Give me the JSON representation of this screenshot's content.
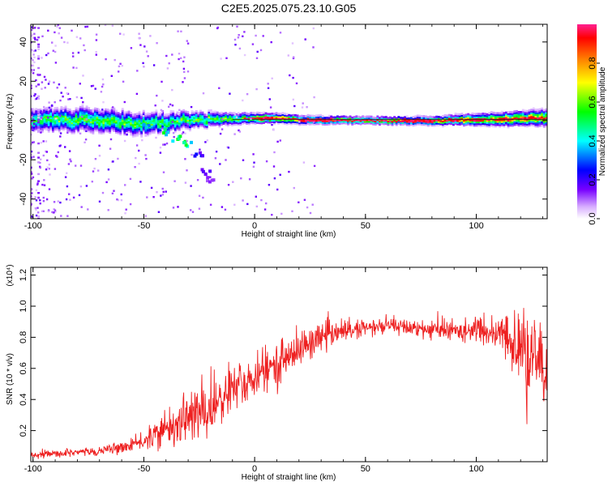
{
  "chart_data": [
    {
      "type": "heatmap",
      "title": "C2E5.2025.075.23.10.G05",
      "xlabel": "Height of straight line (km)",
      "ylabel": "Frequency (Hz)",
      "xlim": [
        -101,
        132
      ],
      "ylim": [
        -50,
        49
      ],
      "xticks": [
        -100,
        -50,
        0,
        50,
        100
      ],
      "yticks": [
        -40,
        -20,
        0,
        20,
        40
      ],
      "colorbar": {
        "label": "Normalized spectral amplitude",
        "ticks": [
          0.0,
          0.2,
          0.4,
          0.6,
          0.8
        ],
        "range": [
          0,
          1
        ],
        "colors": [
          "#ffffff",
          "#d9b0ff",
          "#7700ff",
          "#0000ff",
          "#00ffff",
          "#00ff00",
          "#ffff00",
          "#ff8000",
          "#ff0000",
          "#ff2090"
        ]
      },
      "ridge": [
        {
          "x": -100,
          "f": 0.0,
          "a": 0.55,
          "w": 4.5
        },
        {
          "x": -75,
          "f": 0.5,
          "a": 0.6,
          "w": 5.0
        },
        {
          "x": -50,
          "f": -1.5,
          "a": 0.55,
          "w": 4.5
        },
        {
          "x": -30,
          "f": 0.5,
          "a": 0.7,
          "w": 3.5
        },
        {
          "x": -10,
          "f": 1.0,
          "a": 0.85,
          "w": 2.5
        },
        {
          "x": 10,
          "f": 1.5,
          "a": 0.9,
          "w": 2.0
        },
        {
          "x": 20,
          "f": 0.5,
          "a": 0.95,
          "w": 1.8
        },
        {
          "x": 50,
          "f": 0.0,
          "a": 1.0,
          "w": 1.5
        },
        {
          "x": 80,
          "f": 0.0,
          "a": 0.97,
          "w": 1.8
        },
        {
          "x": 100,
          "f": 0.5,
          "a": 0.85,
          "w": 2.5
        },
        {
          "x": 130,
          "f": 1.5,
          "a": 0.75,
          "w": 3.5
        }
      ],
      "branch": [
        {
          "x": -48,
          "f": -2,
          "a": 0.45
        },
        {
          "x": -40,
          "f": -6,
          "a": 0.55
        },
        {
          "x": -35,
          "f": -9,
          "a": 0.55
        },
        {
          "x": -30,
          "f": -12,
          "a": 0.5
        },
        {
          "x": -25,
          "f": -17,
          "a": 0.25
        },
        {
          "x": -22,
          "f": -26,
          "a": 0.2
        },
        {
          "x": -20,
          "f": -30,
          "a": 0.15
        }
      ]
    },
    {
      "type": "line",
      "xlabel": "Height of straight line (km)",
      "ylabel": "SNR (10 * v/v)",
      "y_multiplier": "(x10⁴)",
      "xlim": [
        -101,
        132
      ],
      "ylim": [
        0,
        1.25
      ],
      "xticks": [
        -100,
        -50,
        0,
        50,
        100
      ],
      "yticks": [
        0.2,
        0.4,
        0.6,
        0.8,
        1.0,
        1.2
      ],
      "color": "#ee2020",
      "trend_x": [
        -101,
        -90,
        -80,
        -70,
        -60,
        -55,
        -50,
        -45,
        -40,
        -35,
        -30,
        -25,
        -20,
        -15,
        -10,
        -5,
        0,
        5,
        10,
        15,
        20,
        25,
        30,
        35,
        40,
        50,
        60,
        70,
        80,
        90,
        100,
        110,
        115,
        120,
        125,
        130,
        132
      ],
      "trend_y": [
        0.04,
        0.05,
        0.06,
        0.07,
        0.09,
        0.11,
        0.13,
        0.17,
        0.21,
        0.25,
        0.29,
        0.31,
        0.34,
        0.4,
        0.46,
        0.5,
        0.53,
        0.58,
        0.63,
        0.68,
        0.72,
        0.76,
        0.8,
        0.82,
        0.84,
        0.86,
        0.87,
        0.86,
        0.85,
        0.84,
        0.84,
        0.82,
        0.78,
        0.7,
        0.65,
        0.6,
        0.55
      ],
      "noise_x": [
        -101,
        -60,
        -50,
        -40,
        -30,
        -20,
        -10,
        0,
        10,
        20,
        30,
        40,
        60,
        80,
        100,
        110,
        120,
        125,
        132
      ],
      "noise_y": [
        0.02,
        0.03,
        0.05,
        0.1,
        0.16,
        0.18,
        0.16,
        0.13,
        0.12,
        0.11,
        0.08,
        0.06,
        0.05,
        0.06,
        0.07,
        0.1,
        0.22,
        0.28,
        0.3
      ]
    }
  ]
}
